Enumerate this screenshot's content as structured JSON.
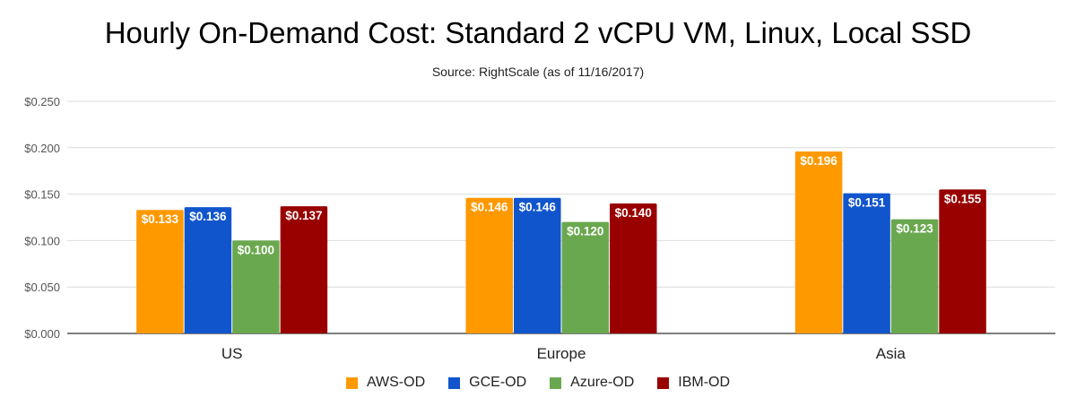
{
  "chart_data": {
    "type": "bar",
    "title": "Hourly On-Demand Cost: Standard 2 vCPU VM, Linux, Local SSD",
    "subtitle": "Source: RightScale (as of 11/16/2017)",
    "xlabel": "",
    "ylabel": "",
    "ylim": [
      0,
      0.25
    ],
    "yticks": [
      0,
      0.05,
      0.1,
      0.15,
      0.2,
      0.25
    ],
    "ytick_labels": [
      "$0.000",
      "$0.050",
      "$0.100",
      "$0.150",
      "$0.200",
      "$0.250"
    ],
    "categories": [
      "US",
      "Europe",
      "Asia"
    ],
    "grid": true,
    "legend_position": "bottom",
    "series": [
      {
        "name": "AWS-OD",
        "color": "#ff9900",
        "values": [
          0.133,
          0.146,
          0.196
        ],
        "labels": [
          "$0.133",
          "$0.146",
          "$0.196"
        ]
      },
      {
        "name": "GCE-OD",
        "color": "#1155cc",
        "values": [
          0.136,
          0.146,
          0.151
        ],
        "labels": [
          "$0.136",
          "$0.146",
          "$0.151"
        ]
      },
      {
        "name": "Azure-OD",
        "color": "#6aa84f",
        "values": [
          0.1,
          0.12,
          0.123
        ],
        "labels": [
          "$0.100",
          "$0.120",
          "$0.123"
        ]
      },
      {
        "name": "IBM-OD",
        "color": "#990000",
        "values": [
          0.137,
          0.14,
          0.155
        ],
        "labels": [
          "$0.137",
          "$0.140",
          "$0.155"
        ]
      }
    ]
  }
}
